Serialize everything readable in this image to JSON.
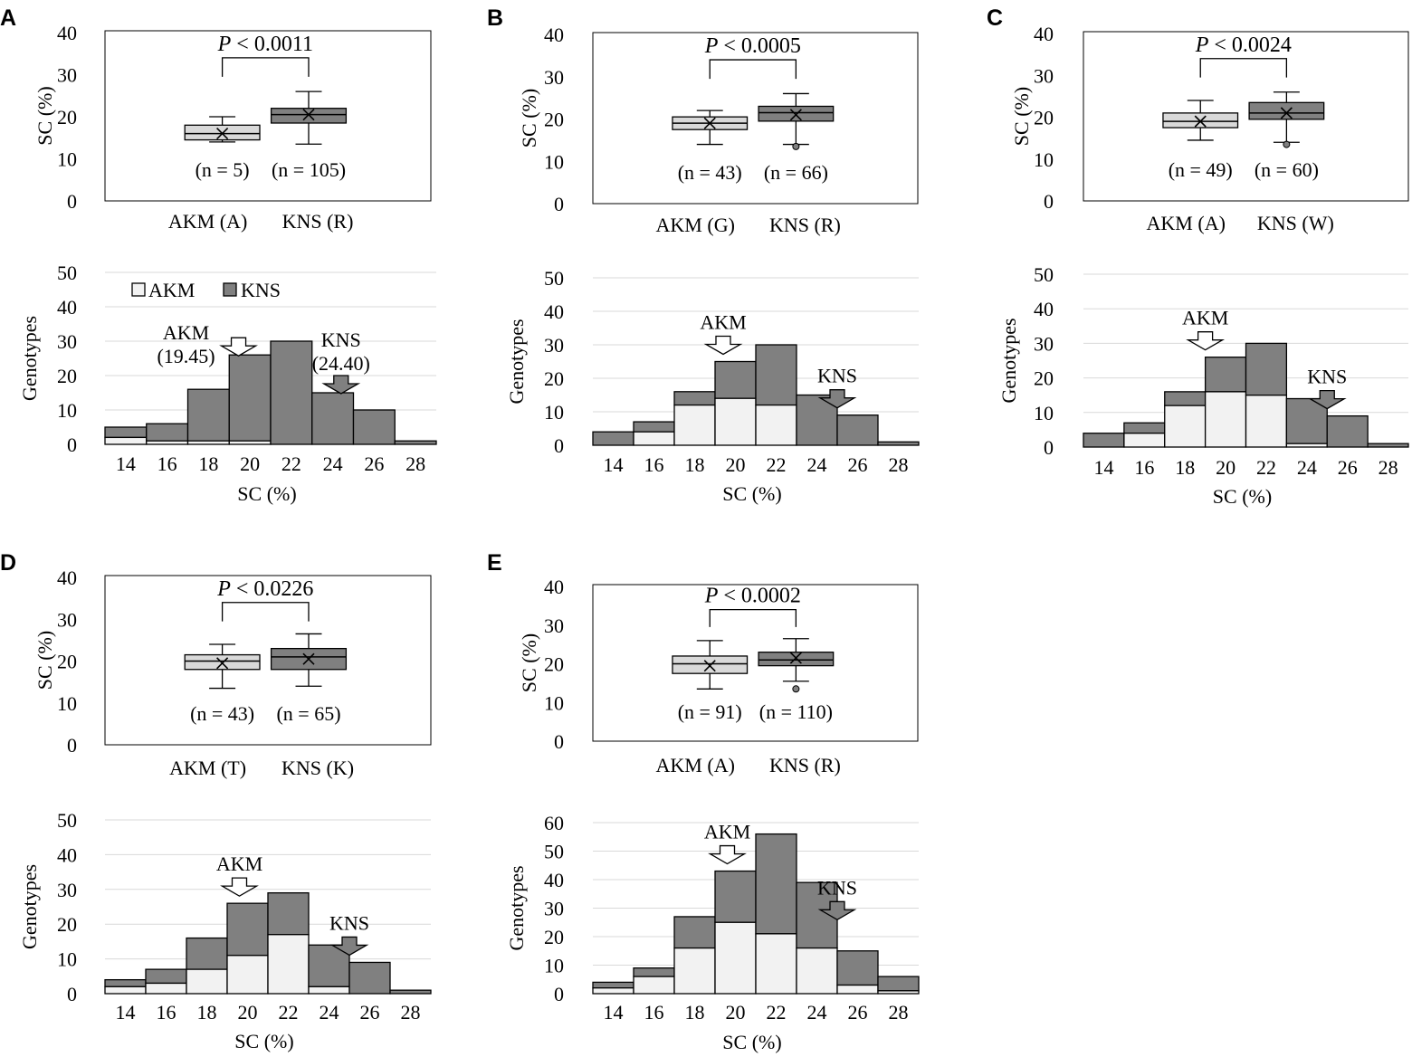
{
  "figure": {
    "background": "#ffffff",
    "light_color": "#f2f2f2",
    "dark_color": "#808080",
    "box_light": "#d9d9d9",
    "box_dark": "#808080",
    "grid_color": "#d9d9d9"
  },
  "chart_data": [
    {
      "panel": "A",
      "boxplot": {
        "type": "box",
        "ylabel": "SC (%)",
        "ylim": [
          0,
          40
        ],
        "yticks": [
          "0",
          "10",
          "20",
          "30",
          "40"
        ],
        "p_prefix": "P",
        "p_suffix": " < 0.0011",
        "groups": [
          {
            "name": "AKM (A)",
            "n_label": "(n = 5)",
            "min": 14,
            "q1": 14.5,
            "median": 16,
            "q3": 18,
            "max": 20,
            "mean": 16,
            "outliers": []
          },
          {
            "name": "KNS (R)",
            "n_label": "(n = 105)",
            "min": 13.5,
            "q1": 18.5,
            "median": 20.5,
            "q3": 22,
            "max": 26,
            "mean": 20.5,
            "outliers": []
          }
        ]
      },
      "histogram": {
        "type": "bar",
        "stacked": true,
        "xlabel": "SC (%)",
        "ylabel": "Genotypes",
        "ylim": [
          0,
          50
        ],
        "yticks": [
          "0",
          "10",
          "20",
          "30",
          "40",
          "50"
        ],
        "xticks": [
          "14",
          "16",
          "18",
          "20",
          "22",
          "24",
          "26",
          "28"
        ],
        "bin_start": 13,
        "bin_width": 2,
        "akm_counts": [
          2,
          1,
          1,
          1,
          0,
          0,
          0,
          0
        ],
        "total_counts": [
          5,
          6,
          16,
          26,
          30,
          15,
          10,
          1
        ],
        "legend": {
          "akm": "AKM",
          "kns": "KNS"
        },
        "arrows": [
          {
            "group": "akm",
            "label": "AKM",
            "value_label": "(19.45)",
            "value": 19.45
          },
          {
            "group": "kns",
            "label": "KNS",
            "value_label": "(24.40)",
            "value": 24.4
          }
        ]
      }
    },
    {
      "panel": "B",
      "boxplot": {
        "type": "box",
        "ylabel": "SC (%)",
        "ylim": [
          0,
          40
        ],
        "yticks": [
          "0",
          "10",
          "20",
          "30",
          "40"
        ],
        "p_prefix": "P",
        "p_suffix": " < 0.0005",
        "groups": [
          {
            "name": "AKM (G)",
            "n_label": "(n = 43)",
            "min": 14,
            "q1": 17.5,
            "median": 19,
            "q3": 20.5,
            "max": 22,
            "mean": 19,
            "outliers": []
          },
          {
            "name": "KNS (R)",
            "n_label": "(n = 66)",
            "min": 14,
            "q1": 19.5,
            "median": 21.5,
            "q3": 23,
            "max": 26,
            "mean": 21,
            "outliers": [
              13.5
            ]
          }
        ]
      },
      "histogram": {
        "type": "bar",
        "stacked": true,
        "xlabel": "SC (%)",
        "ylabel": "Genotypes",
        "ylim": [
          0,
          50
        ],
        "yticks": [
          "0",
          "10",
          "20",
          "30",
          "40",
          "50"
        ],
        "xticks": [
          "14",
          "16",
          "18",
          "20",
          "22",
          "24",
          "26",
          "28"
        ],
        "bin_start": 13,
        "bin_width": 2,
        "akm_counts": [
          0,
          4,
          12,
          14,
          12,
          0,
          0,
          0
        ],
        "total_counts": [
          4,
          7,
          16,
          25,
          30,
          15,
          9,
          1
        ],
        "arrows": [
          {
            "group": "akm",
            "label": "AKM",
            "value": 19.4
          },
          {
            "group": "kns",
            "label": "KNS",
            "value": 25
          }
        ]
      }
    },
    {
      "panel": "C",
      "boxplot": {
        "type": "box",
        "ylabel": "SC (%)",
        "ylim": [
          0,
          40
        ],
        "yticks": [
          "0",
          "10",
          "20",
          "30",
          "40"
        ],
        "p_prefix": "P",
        "p_suffix": " < 0.0024",
        "groups": [
          {
            "name": "AKM (A)",
            "n_label": "(n = 49)",
            "min": 14.5,
            "q1": 17.5,
            "median": 19,
            "q3": 21,
            "max": 24,
            "mean": 19,
            "outliers": []
          },
          {
            "name": "KNS (W)",
            "n_label": "(n = 60)",
            "min": 14,
            "q1": 19.5,
            "median": 21,
            "q3": 23.5,
            "max": 26,
            "mean": 21,
            "outliers": [
              13.5
            ]
          }
        ]
      },
      "histogram": {
        "type": "bar",
        "stacked": true,
        "xlabel": "SC (%)",
        "ylabel": "Genotypes",
        "ylim": [
          0,
          50
        ],
        "yticks": [
          "0",
          "10",
          "20",
          "30",
          "40",
          "50"
        ],
        "xticks": [
          "14",
          "16",
          "18",
          "20",
          "22",
          "24",
          "26",
          "28"
        ],
        "bin_start": 13,
        "bin_width": 2,
        "akm_counts": [
          0,
          4,
          12,
          16,
          15,
          1,
          0,
          0
        ],
        "total_counts": [
          4,
          7,
          16,
          26,
          30,
          14,
          9,
          1
        ],
        "arrows": [
          {
            "group": "akm",
            "label": "AKM",
            "value": 19
          },
          {
            "group": "kns",
            "label": "KNS",
            "value": 25
          }
        ]
      }
    },
    {
      "panel": "D",
      "boxplot": {
        "type": "box",
        "ylabel": "SC (%)",
        "ylim": [
          0,
          40
        ],
        "yticks": [
          "0",
          "10",
          "20",
          "30",
          "40"
        ],
        "p_prefix": "P",
        "p_suffix": " < 0.0226",
        "groups": [
          {
            "name": "AKM (T)",
            "n_label": "(n = 43)",
            "min": 13.5,
            "q1": 18,
            "median": 20,
            "q3": 21.5,
            "max": 24,
            "mean": 19.5,
            "outliers": []
          },
          {
            "name": "KNS (K)",
            "n_label": "(n = 65)",
            "min": 14,
            "q1": 18,
            "median": 21,
            "q3": 23,
            "max": 26.5,
            "mean": 20.5,
            "outliers": []
          }
        ]
      },
      "histogram": {
        "type": "bar",
        "stacked": true,
        "xlabel": "SC (%)",
        "ylabel": "Genotypes",
        "ylim": [
          0,
          50
        ],
        "yticks": [
          "0",
          "10",
          "20",
          "30",
          "40",
          "50"
        ],
        "xticks": [
          "14",
          "16",
          "18",
          "20",
          "22",
          "24",
          "26",
          "28"
        ],
        "bin_start": 13,
        "bin_width": 2,
        "akm_counts": [
          2,
          3,
          7,
          11,
          17,
          2,
          0,
          0
        ],
        "total_counts": [
          4,
          7,
          16,
          26,
          29,
          14,
          9,
          1
        ],
        "arrows": [
          {
            "group": "akm",
            "label": "AKM",
            "value": 19.6
          },
          {
            "group": "kns",
            "label": "KNS",
            "value": 25
          }
        ]
      }
    },
    {
      "panel": "E",
      "boxplot": {
        "type": "box",
        "ylabel": "SC (%)",
        "ylim": [
          0,
          40
        ],
        "yticks": [
          "0",
          "10",
          "20",
          "30",
          "40"
        ],
        "p_prefix": "P",
        "p_suffix": " < 0.0002",
        "groups": [
          {
            "name": "AKM (A)",
            "n_label": "(n = 91)",
            "min": 13.5,
            "q1": 17.5,
            "median": 20,
            "q3": 22,
            "max": 26,
            "mean": 19.5,
            "outliers": []
          },
          {
            "name": "KNS (R)",
            "n_label": "(n = 110)",
            "min": 15.5,
            "q1": 19.5,
            "median": 21,
            "q3": 23,
            "max": 26.5,
            "mean": 21.5,
            "outliers": [
              13.5
            ]
          }
        ]
      },
      "histogram": {
        "type": "bar",
        "stacked": true,
        "xlabel": "SC (%)",
        "ylabel": "Genotypes",
        "ylim": [
          0,
          60
        ],
        "yticks": [
          "0",
          "10",
          "20",
          "30",
          "40",
          "50",
          "60"
        ],
        "xticks": [
          "14",
          "16",
          "18",
          "20",
          "22",
          "24",
          "26",
          "28"
        ],
        "bin_start": 13,
        "bin_width": 2,
        "akm_counts": [
          2,
          6,
          16,
          25,
          21,
          16,
          3,
          1
        ],
        "total_counts": [
          4,
          9,
          27,
          43,
          56,
          39,
          15,
          6
        ],
        "arrows": [
          {
            "group": "akm",
            "label": "AKM",
            "value": 19.6
          },
          {
            "group": "kns",
            "label": "KNS",
            "value": 25
          }
        ]
      }
    }
  ]
}
